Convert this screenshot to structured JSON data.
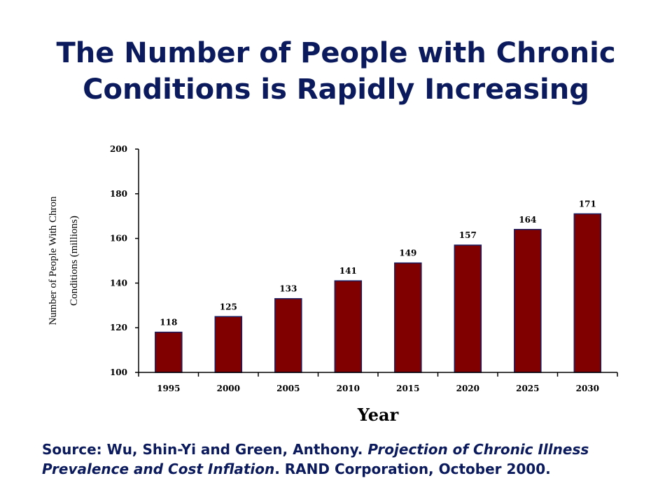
{
  "slide": {
    "title": "The Number of People with Chronic Conditions is Rapidly Increasing",
    "source": {
      "prefix": "Source: Wu, Shin-Yi and Green, Anthony. ",
      "title": "Projection of Chronic Illness Prevalence and Cost Inflation",
      "suffix": ".  RAND Corporation, October 2000."
    }
  },
  "chart_data": {
    "type": "bar",
    "title": "The Number of People with Chronic Conditions is Rapidly Increasing",
    "xlabel": "Year",
    "ylabel": [
      "Number of People With Chron",
      "Conditions (millions)"
    ],
    "categories": [
      "1995",
      "2000",
      "2005",
      "2010",
      "2015",
      "2020",
      "2025",
      "2030"
    ],
    "values": [
      118,
      125,
      133,
      141,
      149,
      157,
      164,
      171
    ],
    "data_labels": [
      "118",
      "125",
      "133",
      "141",
      "149",
      "157",
      "164",
      "171"
    ],
    "ylim": [
      100,
      200
    ],
    "yticks": [
      100,
      120,
      140,
      160,
      180,
      200
    ],
    "ytick_labels": [
      "100",
      "120",
      "140",
      "160",
      "180",
      "200"
    ],
    "grid": false,
    "legend": "none",
    "colors": {
      "bar_fill": "#800000",
      "bar_stroke": "#1a1a5e",
      "axis": "#000000",
      "title_text": "#0a1a5c"
    }
  }
}
